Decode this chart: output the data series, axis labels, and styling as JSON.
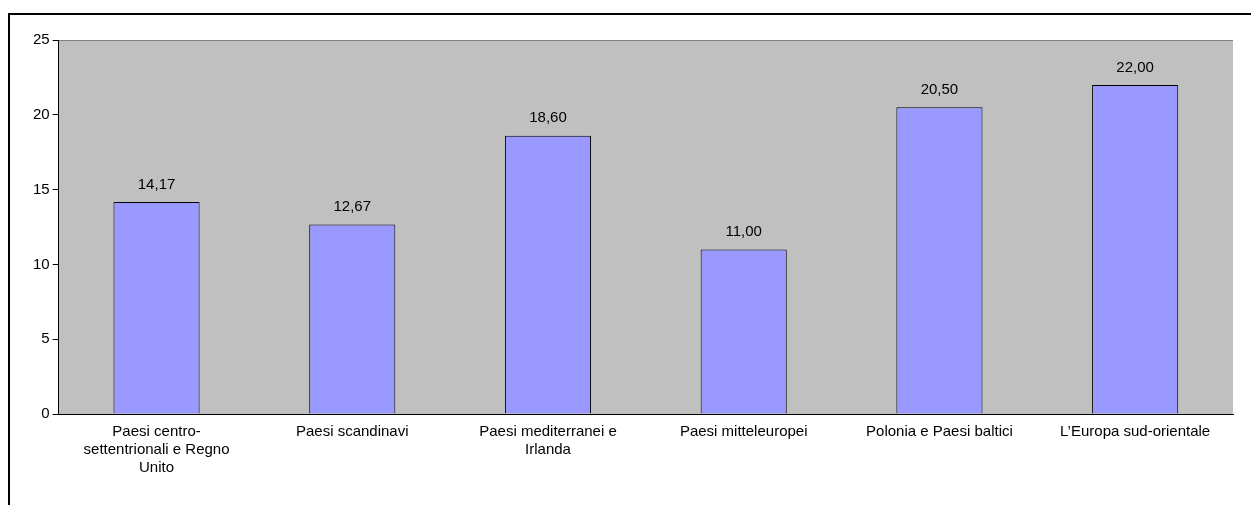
{
  "chart_data": {
    "type": "bar",
    "categories": [
      "Paesi centro-settentrionali e Regno Unito",
      "Paesi scandinavi",
      "Paesi mediterranei e Irlanda",
      "Paesi mitteleuropei",
      "Polonia e Paesi baltici",
      "L’Europa sud-orientale"
    ],
    "values": [
      14.17,
      12.67,
      18.6,
      11,
      20.5,
      22
    ],
    "value_labels": [
      "14,17",
      "12,67",
      "18,60",
      "11,00",
      "20,50",
      "22,00"
    ],
    "color": "#9999ff",
    "ylim": [
      0,
      25
    ],
    "yticks": [
      0,
      5,
      10,
      15,
      20,
      25
    ],
    "grid": false,
    "legend": false
  }
}
